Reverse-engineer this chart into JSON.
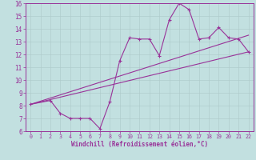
{
  "xlabel": "Windchill (Refroidissement éolien,°C)",
  "ylabel": "",
  "xlim": [
    -0.5,
    22.5
  ],
  "ylim": [
    6,
    16
  ],
  "xticks": [
    0,
    1,
    2,
    3,
    4,
    5,
    6,
    7,
    8,
    9,
    10,
    11,
    12,
    13,
    14,
    15,
    16,
    17,
    18,
    19,
    20,
    21,
    22
  ],
  "yticks": [
    6,
    7,
    8,
    9,
    10,
    11,
    12,
    13,
    14,
    15,
    16
  ],
  "bg_color": "#c2e0e0",
  "line_color": "#993399",
  "grid_color": "#b0cccc",
  "series1_x": [
    0,
    2,
    3,
    4,
    5,
    6,
    7,
    8,
    9,
    10,
    11,
    12,
    13,
    14,
    15,
    16,
    17,
    18,
    19,
    20,
    21,
    22
  ],
  "series1_y": [
    8.1,
    8.4,
    7.4,
    7.0,
    7.0,
    7.0,
    6.2,
    8.3,
    11.5,
    13.3,
    13.2,
    13.2,
    11.9,
    14.7,
    16.0,
    15.5,
    13.2,
    13.3,
    14.1,
    13.3,
    13.2,
    12.2
  ],
  "series2_x": [
    0,
    22
  ],
  "series2_y": [
    8.1,
    13.5
  ],
  "series3_x": [
    0,
    22
  ],
  "series3_y": [
    8.1,
    12.2
  ]
}
